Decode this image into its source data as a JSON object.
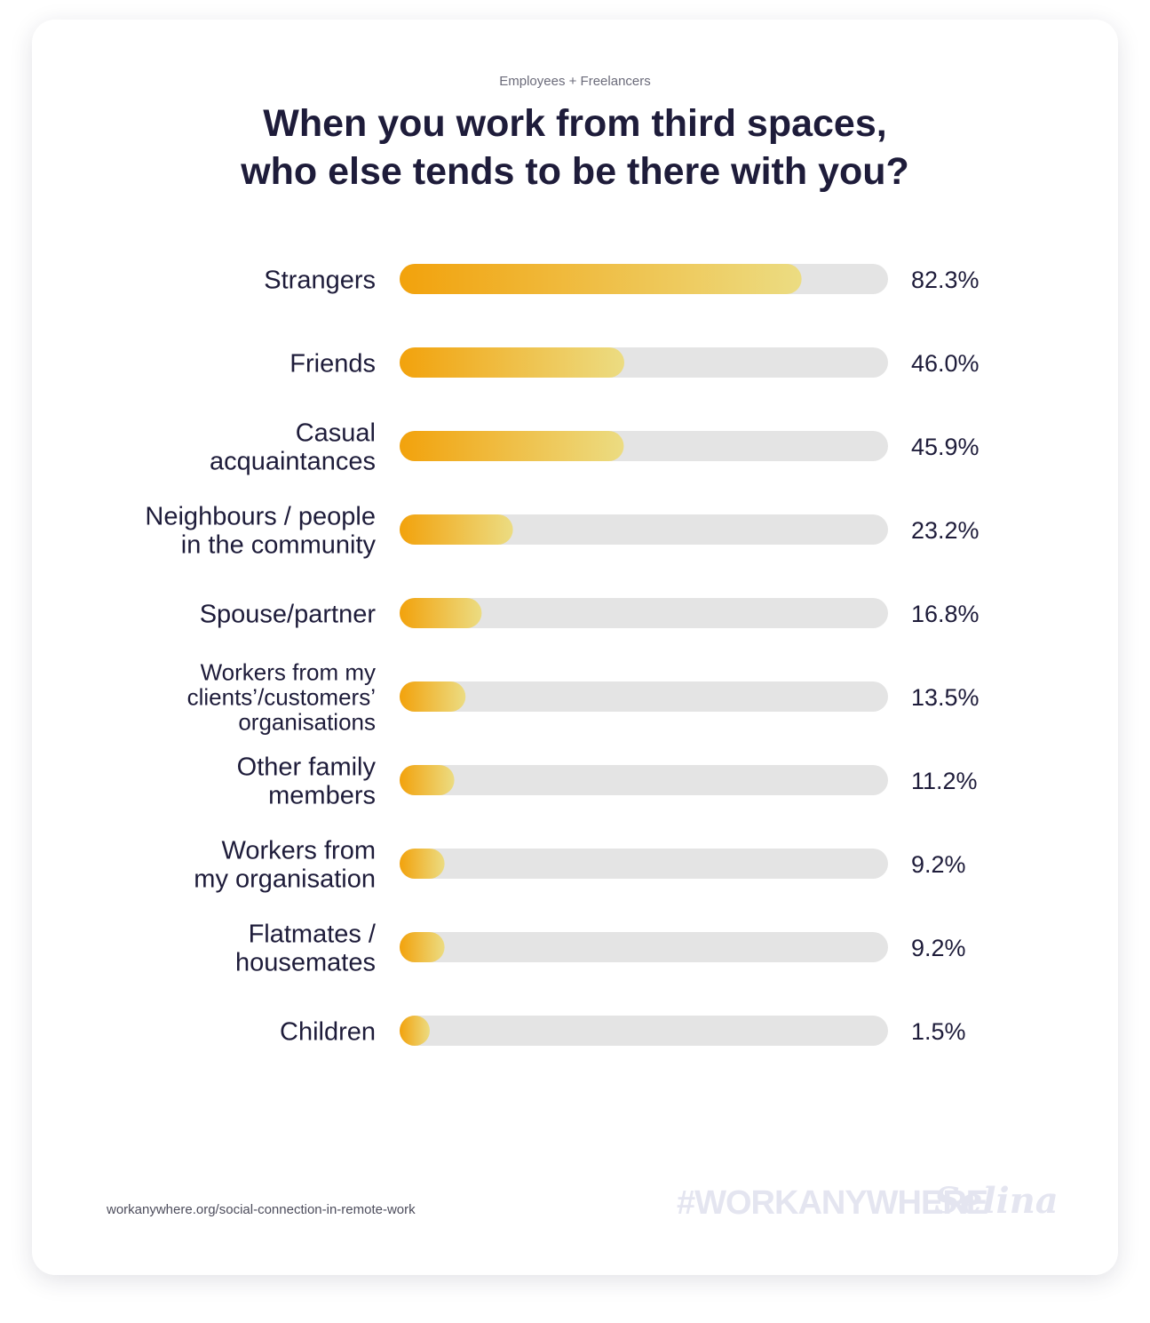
{
  "header": {
    "subtitle": "Employees + Freelancers",
    "title_lines": [
      "When you work from third spaces,",
      "who else tends to be there with you?"
    ]
  },
  "chart_data": {
    "type": "bar",
    "orientation": "horizontal",
    "categories": [
      [
        "Strangers"
      ],
      [
        "Friends"
      ],
      [
        "Casual",
        "acquaintances"
      ],
      [
        "Neighbours / people",
        "in the community"
      ],
      [
        "Spouse/partner"
      ],
      [
        "Workers from my",
        "clients’/customers’",
        "organisations"
      ],
      [
        "Other family",
        "members"
      ],
      [
        "Workers from",
        "my organisation"
      ],
      [
        "Flatmates /",
        "housemates"
      ],
      [
        "Children"
      ]
    ],
    "values": [
      82.3,
      46.0,
      45.9,
      23.2,
      16.8,
      13.5,
      11.2,
      9.2,
      9.2,
      1.5
    ],
    "value_labels": [
      "82.3%",
      "46.0%",
      "45.9%",
      "23.2%",
      "16.8%",
      "13.5%",
      "11.2%",
      "9.2%",
      "9.2%",
      "1.5%"
    ],
    "xlim": [
      0,
      100
    ],
    "colors": {
      "bar_start": "#f2a20c",
      "bar_end": "#ecdc82",
      "track": "#e4e4e4",
      "text": "#1e1c3a"
    }
  },
  "footer": {
    "source": "workanywhere.org/social-connection-in-remote-work",
    "hashtag": "#WORKANYWHERE",
    "brand": "Selina"
  }
}
